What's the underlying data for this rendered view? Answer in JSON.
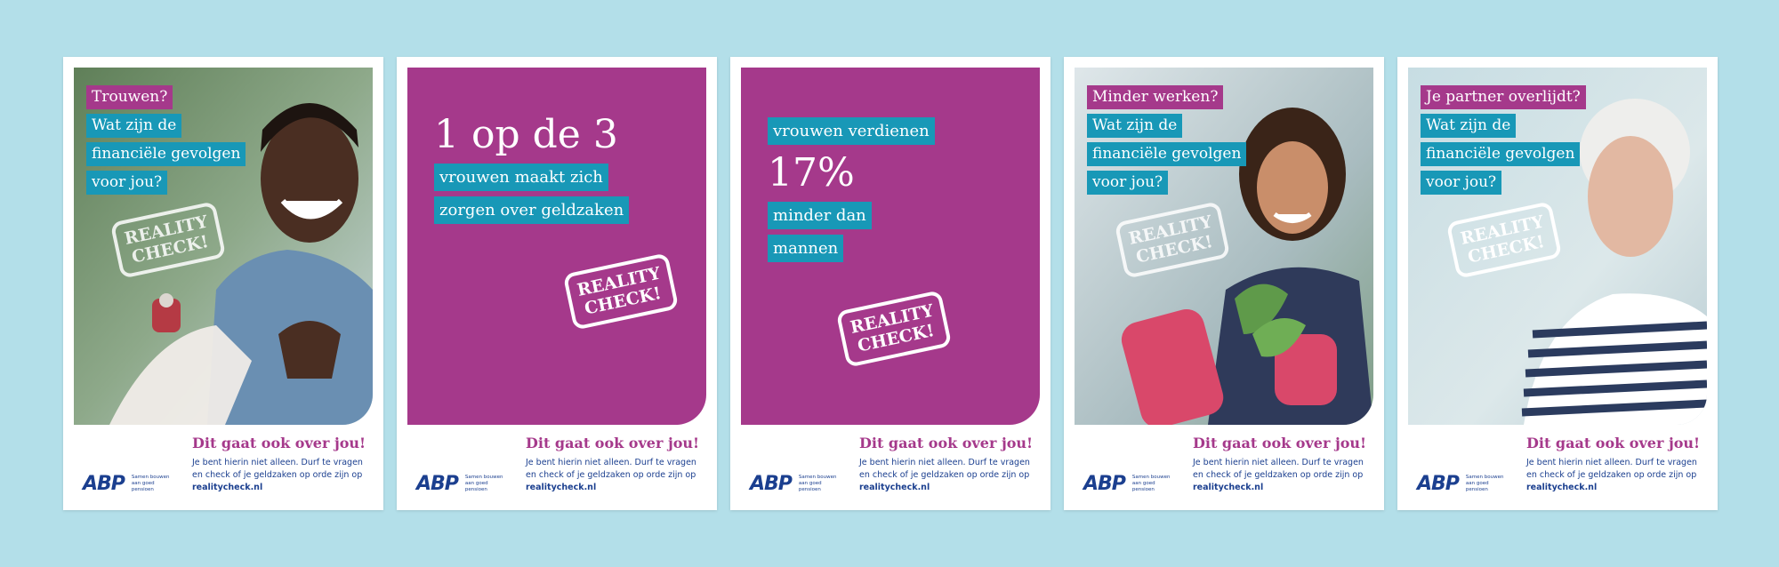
{
  "posters": [
    {
      "tags": [
        "Trouwen?",
        "Wat zijn de",
        "financiële gevolgen",
        "voor jou?"
      ],
      "stamp": [
        "REALITY",
        "CHECK!"
      ],
      "photo": "woman-proposal-ring-icon"
    },
    {
      "headline": "1 op de 3",
      "lines": [
        "vrouwen maakt zich",
        "zorgen over geldzaken"
      ],
      "stamp": [
        "REALITY",
        "CHECK!"
      ]
    },
    {
      "top_line": "vrouwen verdienen",
      "headline": "17%",
      "lines": [
        "minder dan",
        "mannen"
      ],
      "stamp": [
        "REALITY",
        "CHECK!"
      ]
    },
    {
      "tags": [
        "Minder werken?",
        "Wat zijn de",
        "financiële gevolgen",
        "voor jou?"
      ],
      "stamp": [
        "REALITY",
        "CHECK!"
      ],
      "photo": "woman-gardening-icon"
    },
    {
      "tags": [
        "Je partner overlijdt?",
        "Wat zijn de",
        "financiële gevolgen",
        "voor jou?"
      ],
      "stamp": [
        "REALITY",
        "CHECK!"
      ],
      "photo": "senior-woman-portrait-icon"
    }
  ],
  "footer": {
    "heading": "Dit gaat ook over jou!",
    "body": "Je bent hierin niet alleen. Durf te vragen en check of je geldzaken op orde zijn op",
    "link": "realitycheck.nl"
  },
  "logo": {
    "mark": "ABP",
    "tagline": "Samen bouwen aan goed pensioen"
  },
  "colors": {
    "background": "#b3dfe9",
    "purple": "#a5398b",
    "teal": "#1898b7",
    "navy": "#1b3f8f"
  }
}
